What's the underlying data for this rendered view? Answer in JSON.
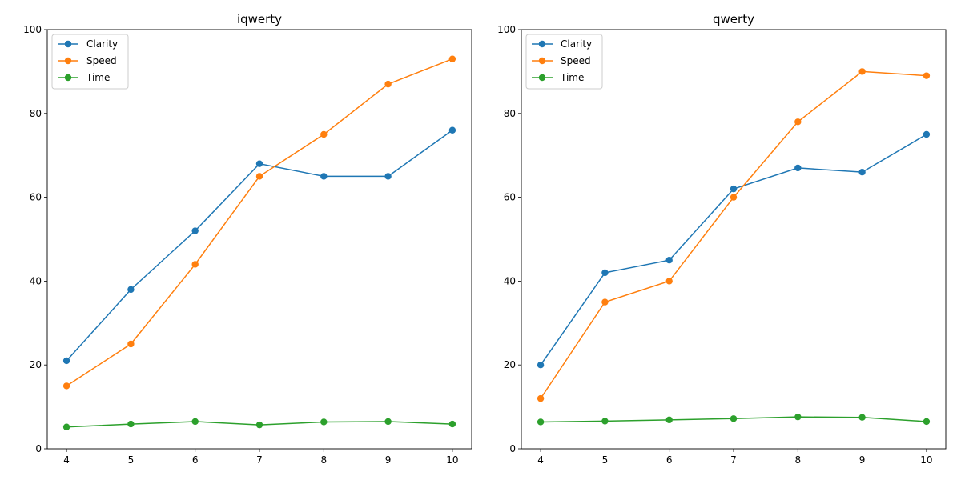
{
  "chart_data": [
    {
      "type": "line",
      "title": "iqwerty",
      "xlabel": "",
      "ylabel": "",
      "x": [
        4,
        5,
        6,
        7,
        8,
        9,
        10
      ],
      "xticks": [
        4,
        5,
        6,
        7,
        8,
        9,
        10
      ],
      "xlim": [
        3.7,
        10.3
      ],
      "ylim": [
        0,
        100
      ],
      "yticks": [
        0,
        20,
        40,
        60,
        80,
        100
      ],
      "grid": false,
      "legend": "upper-left",
      "series": [
        {
          "name": "Clarity",
          "color": "#1f77b4",
          "values": [
            21,
            38,
            52,
            68,
            65,
            65,
            76
          ]
        },
        {
          "name": "Speed",
          "color": "#ff7f0e",
          "values": [
            15,
            25,
            44,
            65,
            75,
            87,
            93
          ]
        },
        {
          "name": "Time",
          "color": "#2ca02c",
          "values": [
            5.2,
            5.9,
            6.5,
            5.7,
            6.4,
            6.5,
            5.9
          ]
        }
      ]
    },
    {
      "type": "line",
      "title": "qwerty",
      "xlabel": "",
      "ylabel": "",
      "x": [
        4,
        5,
        6,
        7,
        8,
        9,
        10
      ],
      "xticks": [
        4,
        5,
        6,
        7,
        8,
        9,
        10
      ],
      "xlim": [
        3.7,
        10.3
      ],
      "ylim": [
        0,
        100
      ],
      "yticks": [
        0,
        20,
        40,
        60,
        80,
        100
      ],
      "grid": false,
      "legend": "upper-left",
      "series": [
        {
          "name": "Clarity",
          "color": "#1f77b4",
          "values": [
            20,
            42,
            45,
            62,
            67,
            66,
            75
          ]
        },
        {
          "name": "Speed",
          "color": "#ff7f0e",
          "values": [
            12,
            35,
            40,
            60,
            78,
            90,
            89
          ]
        },
        {
          "name": "Time",
          "color": "#2ca02c",
          "values": [
            6.4,
            6.6,
            6.9,
            7.2,
            7.6,
            7.5,
            6.5
          ]
        }
      ]
    }
  ]
}
